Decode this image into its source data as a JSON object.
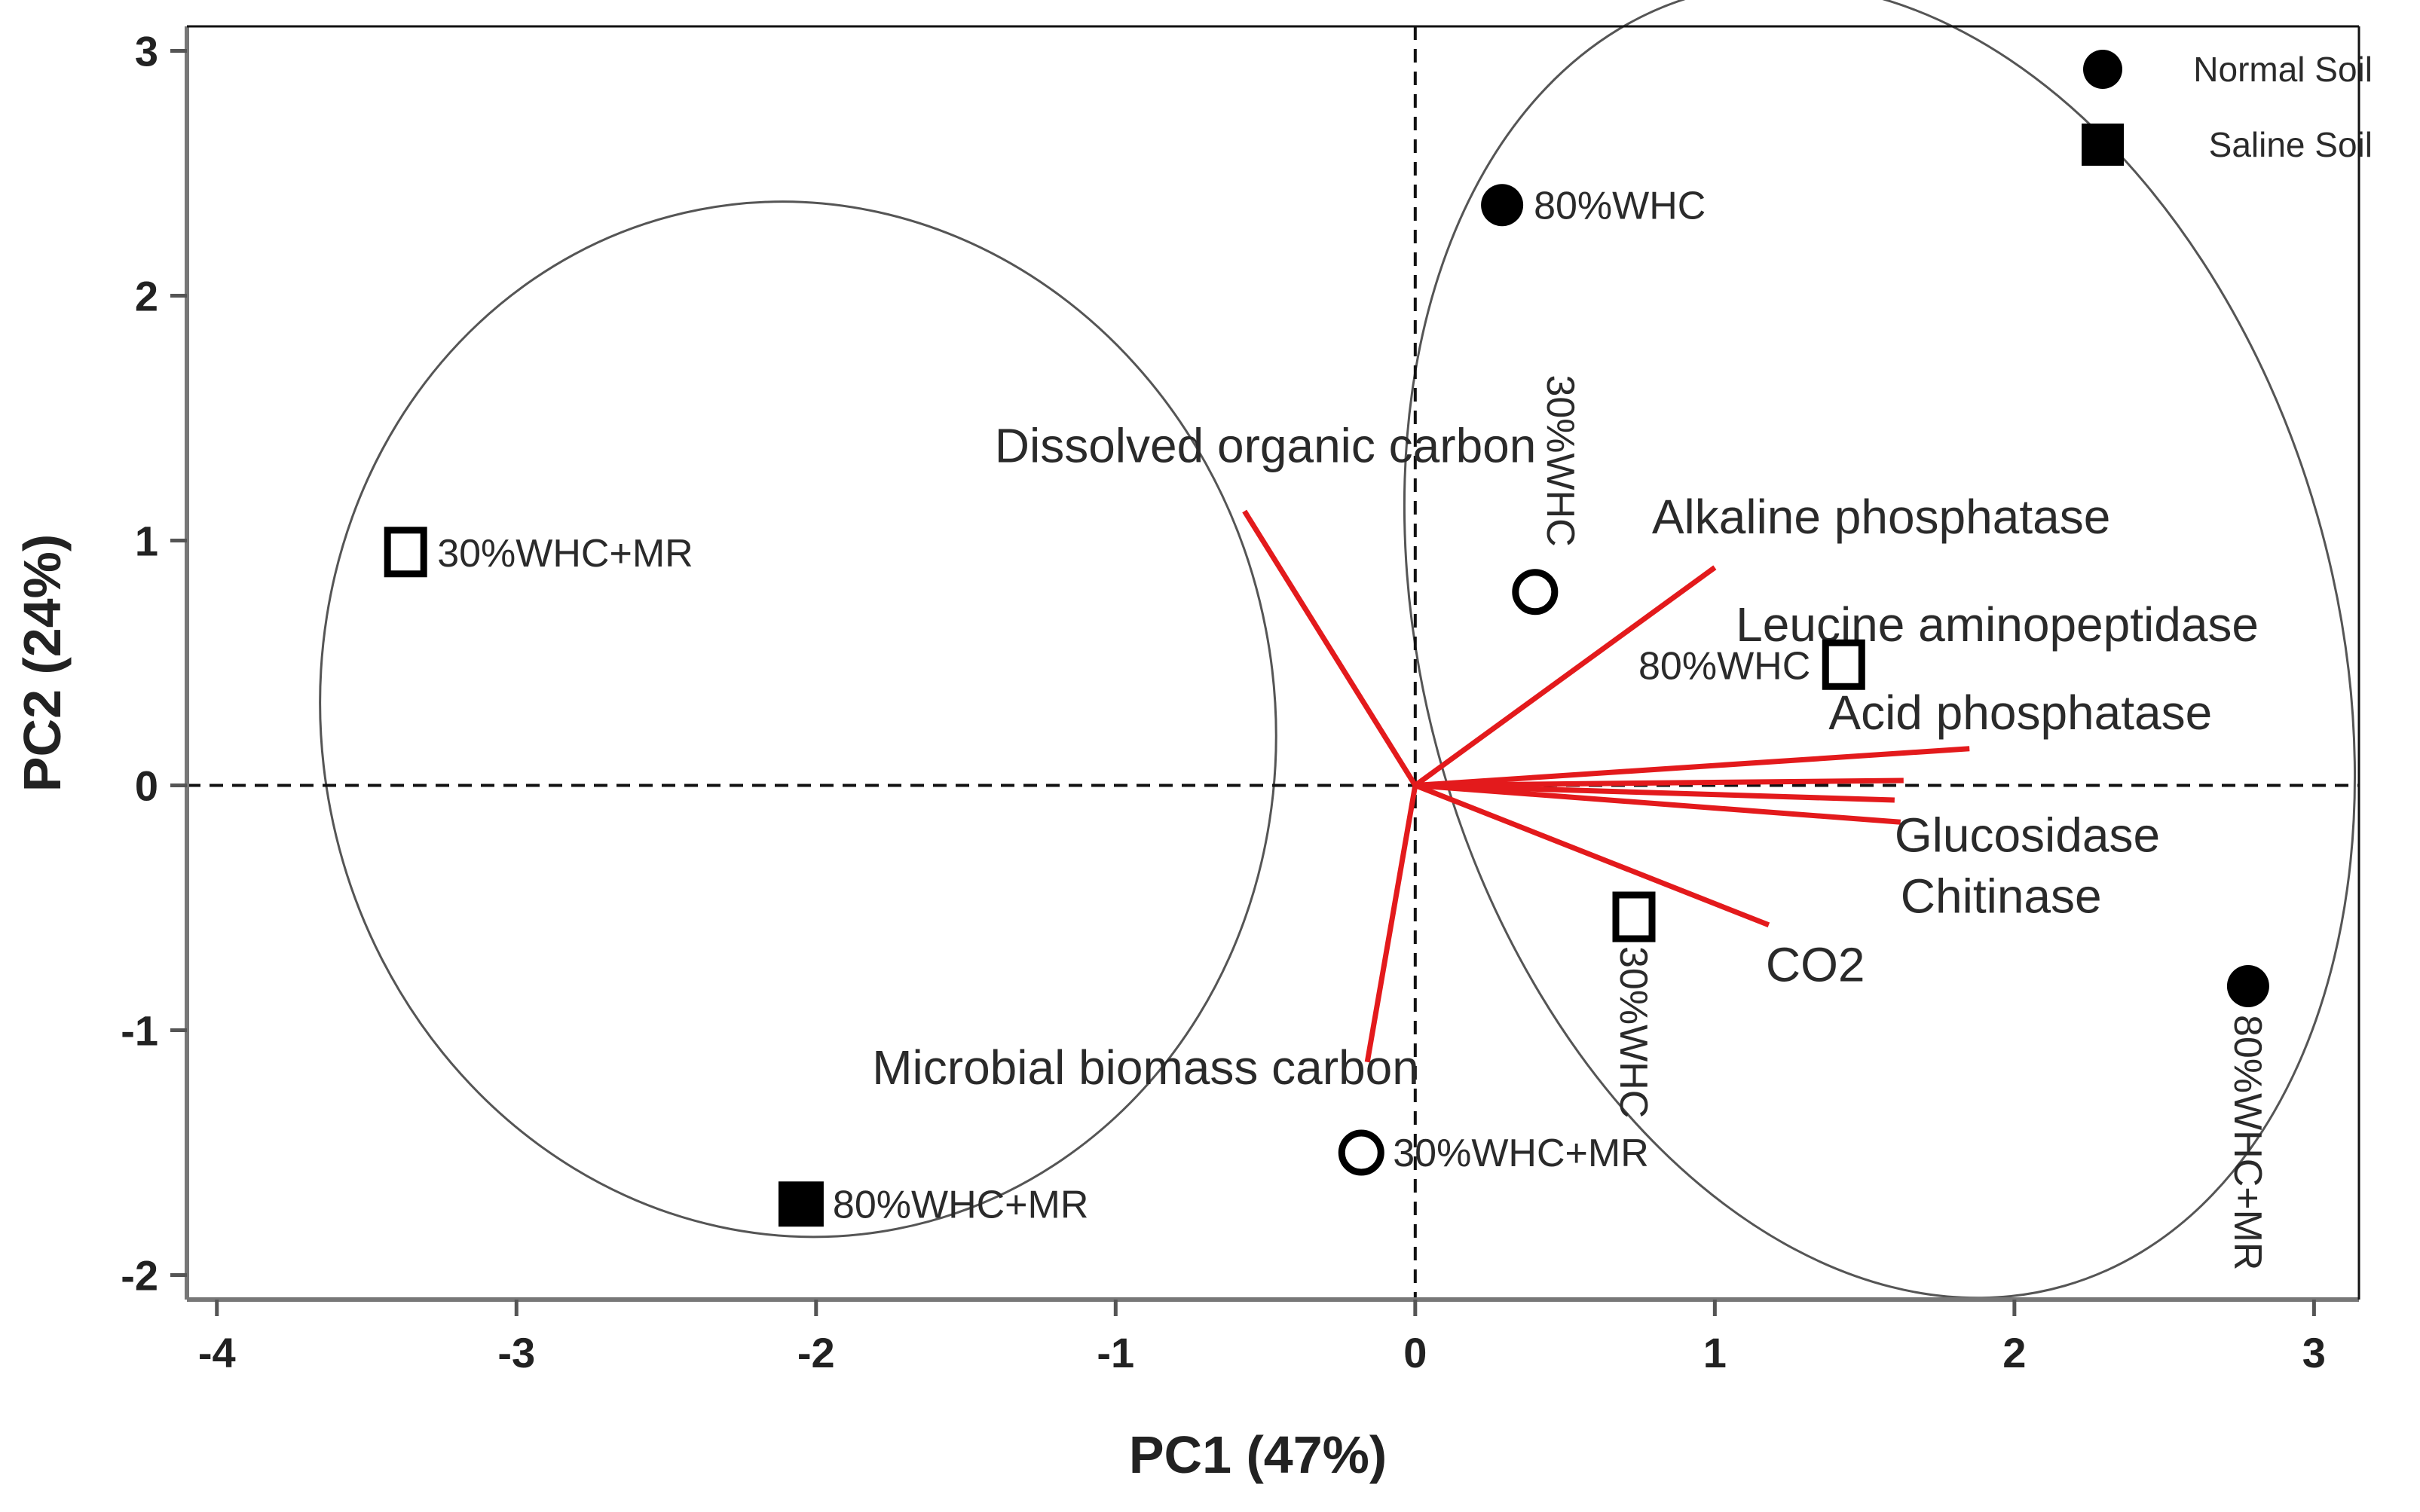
{
  "chart_data": {
    "type": "scatter",
    "subtype": "pca-biplot",
    "title": "",
    "xlabel": "PC1 (47%)",
    "ylabel": "PC2 (24%)",
    "xlim": [
      -4.1,
      3.15
    ],
    "ylim": [
      -2.1,
      3.1
    ],
    "xticks": [
      -4,
      -3,
      -2,
      -1,
      0,
      1,
      2,
      3
    ],
    "yticks": [
      -2,
      -1,
      0,
      1,
      2,
      3
    ],
    "grid": false,
    "reference_lines": {
      "x": 0,
      "y": 0,
      "style": "dashed"
    },
    "legend": {
      "position": "top-right",
      "entries": [
        {
          "label": "Normal Soil",
          "marker": "circle",
          "fill": "#000000"
        },
        {
          "label": "Saline Soil",
          "marker": "square",
          "fill": "#000000"
        }
      ]
    },
    "points": [
      {
        "soil": "Normal Soil",
        "marker": "circle",
        "filled": true,
        "x": 0.29,
        "y": 2.37,
        "label": "80%WHC",
        "label_side": "right"
      },
      {
        "soil": "Normal Soil",
        "marker": "circle",
        "filled": false,
        "x": 0.4,
        "y": 0.79,
        "label": "30%WHC",
        "label_side": "above-rotated"
      },
      {
        "soil": "Normal Soil",
        "marker": "circle",
        "filled": false,
        "x": -0.18,
        "y": -1.5,
        "label": "30%WHC+MR",
        "label_side": "right"
      },
      {
        "soil": "Normal Soil",
        "marker": "circle",
        "filled": true,
        "x": 2.78,
        "y": -0.82,
        "label": "80%WHC+MR",
        "label_side": "below-rotated"
      },
      {
        "soil": "Saline Soil",
        "marker": "square",
        "filled": false,
        "x": -3.37,
        "y": 0.95,
        "label": "30%WHC+MR",
        "label_side": "right"
      },
      {
        "soil": "Saline Soil",
        "marker": "square",
        "filled": true,
        "x": -2.05,
        "y": -1.71,
        "label": "80%WHC+MR",
        "label_side": "right"
      },
      {
        "soil": "Saline Soil",
        "marker": "square",
        "filled": false,
        "x": 1.43,
        "y": 0.49,
        "label": "80%WHC",
        "label_side": "left"
      },
      {
        "soil": "Saline Soil",
        "marker": "square",
        "filled": false,
        "x": 0.73,
        "y": -0.54,
        "label": "30%WHC",
        "label_side": "below-rotated"
      }
    ],
    "loadings_color": "#e31a1c",
    "loadings": [
      {
        "name": "Dissolved organic carbon",
        "x": -0.57,
        "y": 1.12
      },
      {
        "name": "Alkaline phosphatase",
        "x": 1.0,
        "y": 0.89
      },
      {
        "name": "Leucine aminopeptidase",
        "x": 1.63,
        "y": 0.02
      },
      {
        "name": "Acid phosphatase",
        "x": 1.85,
        "y": 0.15
      },
      {
        "name": "Glucosidase",
        "x": 1.62,
        "y": -0.15
      },
      {
        "name": "Chitinase",
        "x": 1.6,
        "y": -0.06
      },
      {
        "name": "CO2",
        "x": 1.18,
        "y": -0.57
      },
      {
        "name": "Microbial biomass carbon",
        "x": -0.16,
        "y": -1.13
      }
    ],
    "loading_labels": [
      {
        "text": "Dissolved organic carbon",
        "x": -0.5,
        "y": 1.32,
        "anchor": "middle"
      },
      {
        "text": "Alkaline phosphatase",
        "x": 0.79,
        "y": 1.03,
        "anchor": "start"
      },
      {
        "text": "Leucine aminopeptidase",
        "x": 1.07,
        "y": 0.59,
        "anchor": "start"
      },
      {
        "text": "Acid phosphatase",
        "x": 1.38,
        "y": 0.23,
        "anchor": "start"
      },
      {
        "text": "Glucosidase",
        "x": 1.6,
        "y": -0.27,
        "anchor": "start"
      },
      {
        "text": "Chitinase",
        "x": 1.62,
        "y": -0.52,
        "anchor": "start"
      },
      {
        "text": "CO2",
        "x": 1.17,
        "y": -0.8,
        "anchor": "start"
      },
      {
        "text": "Microbial biomass carbon",
        "x": -0.9,
        "y": -1.22,
        "anchor": "middle"
      }
    ],
    "ellipses": [
      {
        "group": "left",
        "cx": -2.06,
        "cy": 0.27,
        "rx": 1.59,
        "ry": 2.12,
        "rotation_deg": -11
      },
      {
        "group": "right",
        "cx": 1.55,
        "cy": 0.59,
        "rx": 1.52,
        "ry": 2.74,
        "rotation_deg": -16
      }
    ]
  }
}
